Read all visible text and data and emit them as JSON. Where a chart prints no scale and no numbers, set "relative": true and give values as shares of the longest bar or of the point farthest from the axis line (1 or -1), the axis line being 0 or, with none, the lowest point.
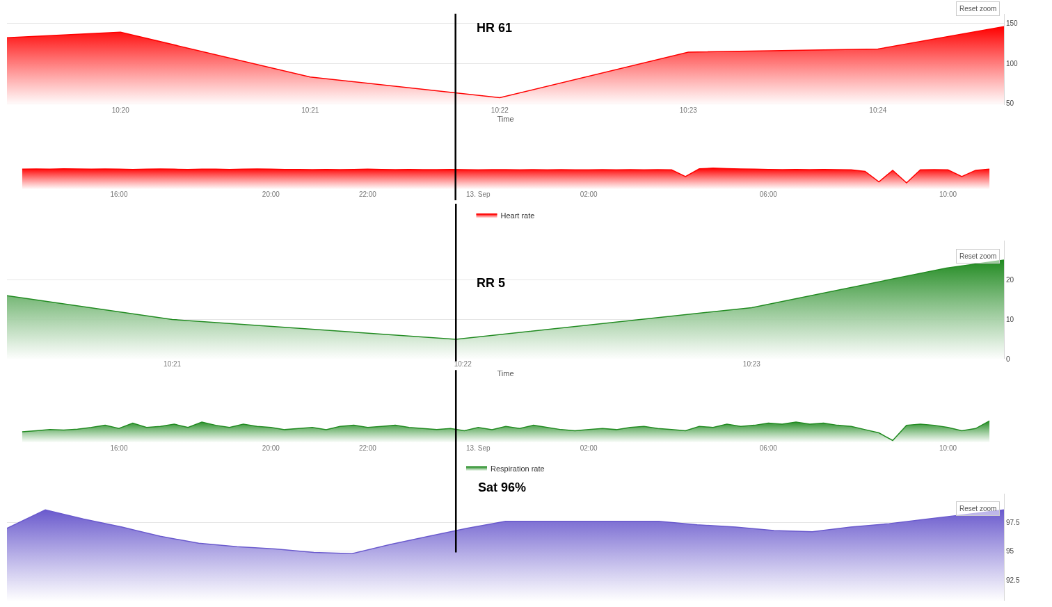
{
  "chart_data": [
    {
      "type": "area",
      "xlabel": "Time",
      "x": [
        10.3233,
        10.3333,
        10.35,
        10.3667,
        10.3833,
        10.4,
        10.4111
      ],
      "series": [
        {
          "name": "Heart rate",
          "color": "#ff0000",
          "values": [
            132,
            139,
            83,
            57,
            114,
            118,
            146
          ]
        }
      ],
      "xlim": [
        10.3233,
        10.4111
      ],
      "xticks": [
        {
          "value": 10.3333,
          "label": "10:20"
        },
        {
          "value": 10.35,
          "label": "10:21"
        },
        {
          "value": 10.3667,
          "label": "10:22"
        },
        {
          "value": 10.3833,
          "label": "10:23"
        },
        {
          "value": 10.4,
          "label": "10:24"
        }
      ],
      "ylim": [
        48,
        162
      ],
      "yticks": [
        50,
        100,
        150
      ],
      "grid": "y",
      "legend": "bottom",
      "ref_lines": [
        {
          "axis": "x",
          "value": 10.3628,
          "label": "HR 61",
          "color": "#000000"
        }
      ],
      "annotations": [
        "Reset zoom"
      ]
    },
    {
      "type": "area",
      "relative": true,
      "tick_labels": "x",
      "categories": [
        null,
        null,
        null,
        null,
        null,
        null,
        null,
        "16:00",
        null,
        null,
        null,
        null,
        null,
        null,
        null,
        null,
        null,
        null,
        "20:00",
        null,
        null,
        null,
        null,
        null,
        null,
        "22:00",
        null,
        null,
        null,
        null,
        null,
        null,
        null,
        "13. Sep",
        null,
        null,
        null,
        null,
        null,
        null,
        null,
        "02:00",
        null,
        null,
        null,
        null,
        null,
        null,
        null,
        null,
        null,
        null,
        null,
        null,
        "06:00",
        null,
        null,
        null,
        null,
        null,
        null,
        null,
        null,
        null,
        null,
        null,
        null,
        "10:00",
        null,
        null,
        null
      ],
      "series": [
        {
          "color": "#ff0000",
          "values": [
            0.95,
            0.96,
            0.95,
            0.97,
            0.96,
            0.95,
            0.96,
            0.95,
            0.94,
            0.95,
            0.96,
            0.95,
            0.94,
            0.95,
            0.95,
            0.94,
            0.95,
            0.96,
            0.95,
            0.94,
            0.94,
            0.93,
            0.94,
            0.93,
            0.94,
            0.95,
            0.94,
            0.93,
            0.94,
            0.93,
            0.93,
            0.94,
            0.93,
            0.92,
            0.93,
            0.93,
            0.92,
            0.93,
            0.92,
            0.93,
            0.92,
            0.92,
            0.93,
            0.92,
            0.93,
            0.92,
            0.93,
            0.92,
            0.6,
            0.97,
            1.0,
            0.98,
            0.96,
            0.95,
            0.94,
            0.93,
            0.94,
            0.93,
            0.94,
            0.93,
            0.92,
            0.85,
            0.35,
            0.9,
            0.3,
            0.92,
            0.93,
            0.92,
            0.6,
            0.9,
            0.95
          ]
        }
      ]
    },
    {
      "type": "area",
      "xlabel": "Time",
      "x": [
        10.3405,
        10.35,
        10.3663,
        10.3833,
        10.3945,
        10.3978
      ],
      "series": [
        {
          "name": "Respiration rate",
          "color": "#228b22",
          "values": [
            16,
            10,
            5,
            13,
            23,
            25
          ]
        }
      ],
      "xlim": [
        10.3405,
        10.3978
      ],
      "xticks": [
        {
          "value": 10.35,
          "label": "10:21"
        },
        {
          "value": 10.3667,
          "label": "10:22"
        },
        {
          "value": 10.3833,
          "label": "10:23"
        }
      ],
      "ylim": [
        0,
        30
      ],
      "yticks": [
        0,
        10,
        20
      ],
      "grid": "y",
      "legend": "bottom",
      "ref_lines": [
        {
          "axis": "x",
          "value": 10.3663,
          "label": "RR 5",
          "color": "#000000"
        }
      ],
      "annotations": [
        "Reset zoom"
      ]
    },
    {
      "type": "area",
      "relative": true,
      "tick_labels": "x",
      "categories": [
        null,
        null,
        null,
        null,
        null,
        null,
        null,
        "16:00",
        null,
        null,
        null,
        null,
        null,
        null,
        null,
        null,
        null,
        null,
        "20:00",
        null,
        null,
        null,
        null,
        null,
        null,
        "22:00",
        null,
        null,
        null,
        null,
        null,
        null,
        null,
        "13. Sep",
        null,
        null,
        null,
        null,
        null,
        null,
        null,
        "02:00",
        null,
        null,
        null,
        null,
        null,
        null,
        null,
        null,
        null,
        null,
        null,
        null,
        "06:00",
        null,
        null,
        null,
        null,
        null,
        null,
        null,
        null,
        null,
        null,
        null,
        null,
        "10:00",
        null,
        null,
        null
      ],
      "series": [
        {
          "color": "#228b22",
          "values": [
            0.5,
            0.55,
            0.6,
            0.58,
            0.62,
            0.7,
            0.8,
            0.65,
            0.9,
            0.7,
            0.75,
            0.85,
            0.7,
            0.95,
            0.8,
            0.7,
            0.85,
            0.75,
            0.7,
            0.6,
            0.65,
            0.7,
            0.6,
            0.75,
            0.8,
            0.7,
            0.75,
            0.8,
            0.7,
            0.65,
            0.6,
            0.65,
            0.55,
            0.7,
            0.6,
            0.75,
            0.65,
            0.8,
            0.7,
            0.6,
            0.55,
            0.6,
            0.65,
            0.6,
            0.7,
            0.75,
            0.65,
            0.6,
            0.55,
            0.75,
            0.7,
            0.85,
            0.75,
            0.8,
            0.9,
            0.85,
            0.95,
            0.85,
            0.9,
            0.8,
            0.75,
            0.6,
            0.45,
            0.1,
            0.8,
            0.85,
            0.8,
            0.7,
            0.55,
            0.65,
            1.0
          ]
        }
      ]
    },
    {
      "type": "area",
      "tick_labels": "y",
      "categories": [
        null,
        null,
        null,
        null,
        null,
        null,
        null,
        null,
        null,
        null,
        null,
        null,
        null,
        null,
        null,
        null,
        null,
        null,
        null,
        null,
        null,
        null,
        null,
        null,
        null,
        null,
        null
      ],
      "series": [
        {
          "color": "#6a5acd",
          "values": [
            97.0,
            98.6,
            97.8,
            97.1,
            96.3,
            95.7,
            95.4,
            95.2,
            94.9,
            94.8,
            95.6,
            96.3,
            97.0,
            97.6,
            97.6,
            97.6,
            97.6,
            97.6,
            97.3,
            97.1,
            96.8,
            96.7,
            97.1,
            97.4,
            97.8,
            98.2,
            98.6
          ]
        }
      ],
      "ylim": [
        90.7,
        100
      ],
      "yticks": [
        92.5,
        95,
        97.5
      ],
      "grid": "y",
      "annotations": [
        "Sat 96%",
        "Reset zoom"
      ]
    }
  ]
}
